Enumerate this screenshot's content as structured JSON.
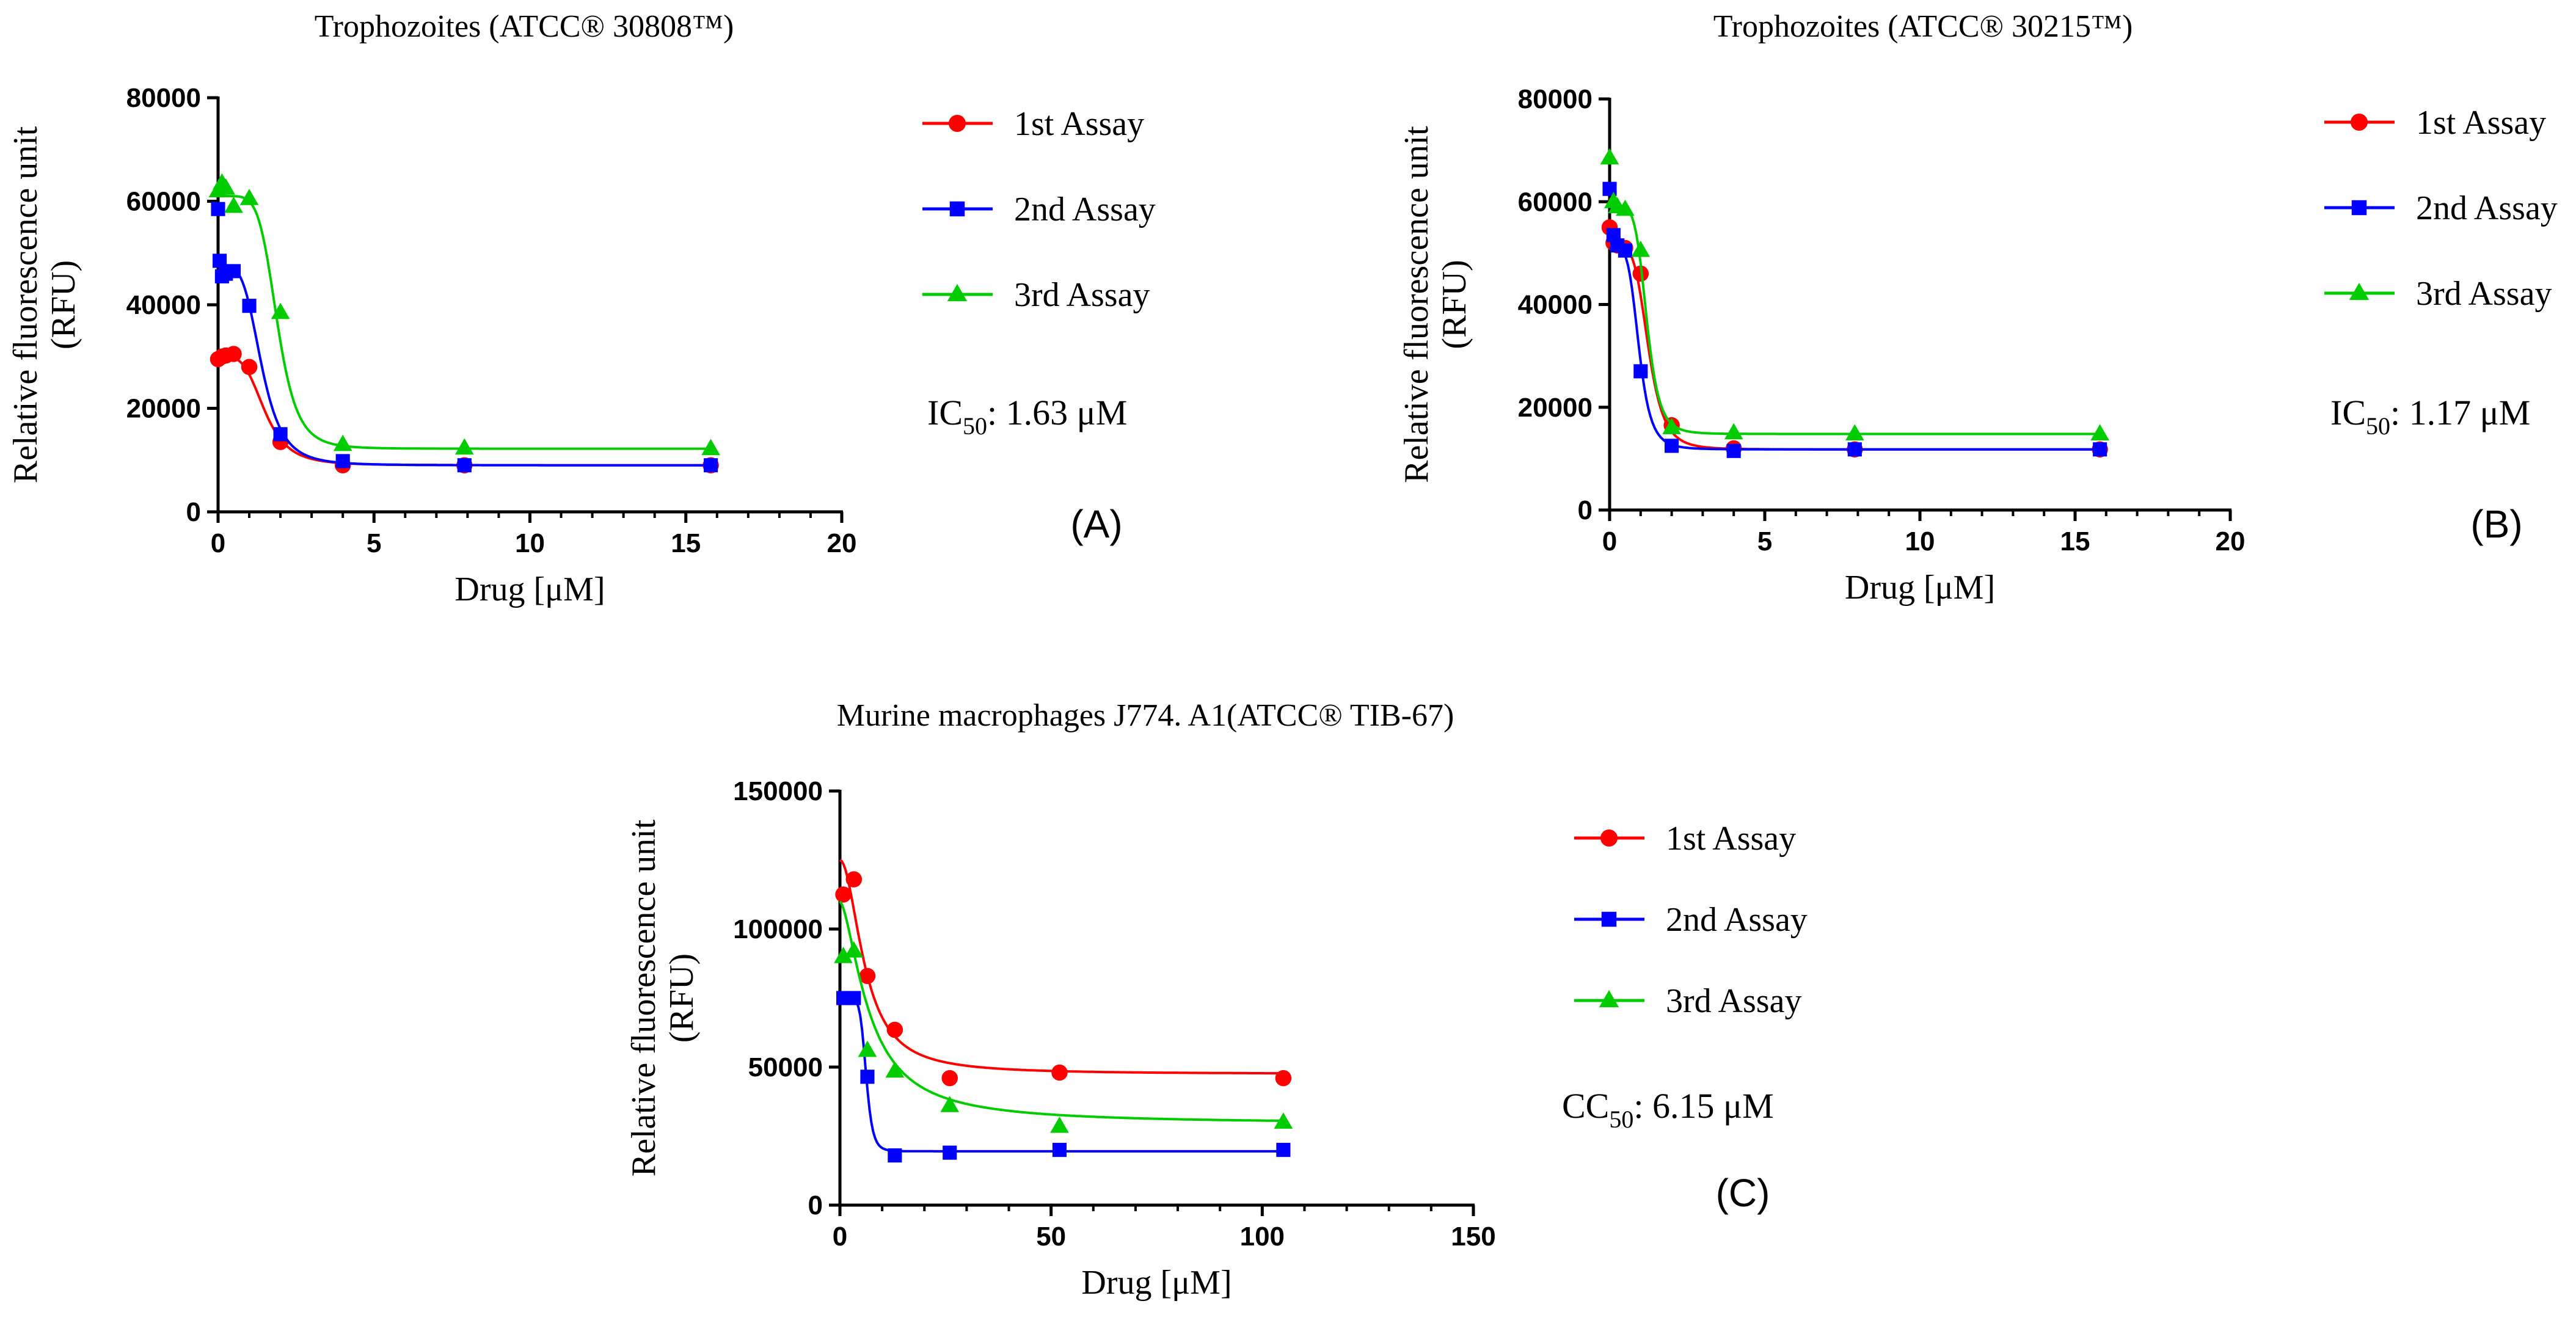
{
  "figure": {
    "panels": [
      "(A)",
      "(B)",
      "(C)"
    ]
  },
  "colors": {
    "series1": "#ff0000",
    "series2": "#0000ff",
    "series3": "#00cc00",
    "axis": "#000000"
  },
  "chart_data": [
    {
      "type": "scatter",
      "panel_label": "(A)",
      "title": "Trophozoites (ATCC® 30808™)",
      "xlabel": "Drug [μM]",
      "ylabel": "Relative fluorescence unit",
      "ylabel2": "(RFU)",
      "xlim": [
        0,
        20
      ],
      "ylim": [
        0,
        80000
      ],
      "xticks": [
        0,
        5,
        10,
        15,
        20
      ],
      "yticks": [
        0,
        20000,
        40000,
        60000,
        80000
      ],
      "xtick_labels": [
        "0",
        "5",
        "10",
        "15",
        "20"
      ],
      "ytick_labels": [
        "0",
        "20000",
        "40000",
        "60000",
        "80000"
      ],
      "stat_prefix": "IC",
      "stat_sub": "50",
      "stat_value": ": 1.63 μM",
      "legend": [
        "1st Assay",
        "2nd Assay",
        "3rd Assay"
      ],
      "series": [
        {
          "name": "1st Assay",
          "marker": "circle",
          "x": [
            0,
            0.125,
            0.25,
            0.5,
            1,
            2,
            4,
            7.9,
            15.8
          ],
          "y": [
            29500,
            30000,
            30200,
            30500,
            28000,
            13500,
            9000,
            9000,
            9000
          ],
          "fit": {
            "top": 30000,
            "bottom": 9000,
            "ic50": 1.5,
            "hill": 4
          }
        },
        {
          "name": "2nd Assay",
          "marker": "square",
          "x": [
            0,
            0.05,
            0.125,
            0.25,
            0.5,
            1,
            2,
            4,
            7.9,
            15.8
          ],
          "y": [
            58500,
            48500,
            45500,
            46000,
            46500,
            39800,
            15000,
            9800,
            9000,
            9000
          ],
          "fit": {
            "top": 47500,
            "bottom": 9000,
            "ic50": 1.4,
            "hill": 4.2
          }
        },
        {
          "name": "3rd Assay",
          "marker": "triangle",
          "x": [
            0,
            0.125,
            0.25,
            0.5,
            1,
            2,
            4,
            7.9,
            15.8
          ],
          "y": [
            62000,
            63500,
            62500,
            59000,
            60500,
            38500,
            13000,
            12300,
            12200
          ],
          "fit": {
            "top": 61000,
            "bottom": 12200,
            "ic50": 1.9,
            "hill": 6
          }
        }
      ]
    },
    {
      "type": "scatter",
      "panel_label": "(B)",
      "title": "Trophozoites (ATCC® 30215™)",
      "xlabel": "Drug [μM]",
      "ylabel": "Relative fluorescence unit",
      "ylabel2": "(RFU)",
      "xlim": [
        0,
        20
      ],
      "ylim": [
        0,
        80000
      ],
      "xticks": [
        0,
        5,
        10,
        15,
        20
      ],
      "yticks": [
        0,
        20000,
        40000,
        60000,
        80000
      ],
      "xtick_labels": [
        "0",
        "5",
        "10",
        "15",
        "20"
      ],
      "ytick_labels": [
        "0",
        "20000",
        "40000",
        "60000",
        "80000"
      ],
      "stat_prefix": "IC",
      "stat_sub": "50",
      "stat_value": ": 1.17 μM",
      "legend": [
        "1st Assay",
        "2nd Assay",
        "3rd Assay"
      ],
      "series": [
        {
          "name": "1st Assay",
          "marker": "circle",
          "x": [
            0,
            0.125,
            0.25,
            0.5,
            1,
            2,
            4,
            7.9,
            15.8
          ],
          "y": [
            55000,
            52000,
            51500,
            51000,
            46000,
            16500,
            12000,
            11800,
            11800
          ],
          "fit": {
            "top": 51500,
            "bottom": 11800,
            "ic50": 1.25,
            "hill": 5
          }
        },
        {
          "name": "2nd Assay",
          "marker": "square",
          "x": [
            0,
            0.125,
            0.25,
            0.5,
            1,
            2,
            4,
            7.9,
            15.8
          ],
          "y": [
            62500,
            53500,
            51500,
            50500,
            27000,
            12500,
            11500,
            11800,
            11800
          ],
          "fit": {
            "top": 51000,
            "bottom": 11800,
            "ic50": 0.95,
            "hill": 5
          }
        },
        {
          "name": "3rd Assay",
          "marker": "triangle",
          "x": [
            0,
            0.125,
            0.25,
            0.5,
            1,
            2,
            4,
            7.9,
            15.8
          ],
          "y": [
            68500,
            60000,
            59000,
            58500,
            50500,
            16000,
            15000,
            14800,
            14800
          ],
          "fit": {
            "top": 59000,
            "bottom": 14800,
            "ic50": 1.2,
            "hill": 6
          }
        }
      ]
    },
    {
      "type": "scatter",
      "panel_label": "(C)",
      "title": "Murine macrophages J774. A1(ATCC® TIB-67)",
      "xlabel": "Drug [μM]",
      "ylabel": "Relative fluorescence unit",
      "ylabel2": "(RFU)",
      "xlim": [
        0,
        150
      ],
      "ylim": [
        0,
        150000
      ],
      "xticks": [
        0,
        50,
        100,
        150
      ],
      "yticks": [
        0,
        50000,
        100000,
        150000
      ],
      "xtick_labels": [
        "0",
        "50",
        "100",
        "150"
      ],
      "ytick_labels": [
        "0",
        "50000",
        "100000",
        "150000"
      ],
      "stat_prefix": "CC",
      "stat_sub": "50",
      "stat_value": ": 6.15 μM",
      "legend": [
        "1st Assay",
        "2nd Assay",
        "3rd Assay"
      ],
      "series": [
        {
          "name": "1st Assay",
          "marker": "circle",
          "x": [
            0.8,
            3.3,
            6.5,
            13,
            26,
            52,
            105
          ],
          "y": [
            112500,
            118000,
            83000,
            63500,
            46000,
            48000,
            46000
          ],
          "fit": {
            "top": 125000,
            "bottom": 47500,
            "ic50": 6,
            "hill": 2
          }
        },
        {
          "name": "2nd Assay",
          "marker": "square",
          "x": [
            0.8,
            3.3,
            6.5,
            13,
            26,
            52,
            105
          ],
          "y": [
            75000,
            75000,
            46500,
            18000,
            19000,
            20000,
            20000
          ],
          "fit": {
            "top": 75000,
            "bottom": 19500,
            "ic50": 6.2,
            "hill": 8
          }
        },
        {
          "name": "3rd Assay",
          "marker": "triangle",
          "x": [
            0.8,
            3.3,
            6.5,
            13,
            26,
            52,
            105
          ],
          "y": [
            90000,
            92000,
            56000,
            48500,
            36000,
            28500,
            30000
          ],
          "fit": {
            "top": 110000,
            "bottom": 29500,
            "ic50": 7,
            "hill": 1.6
          }
        }
      ]
    }
  ]
}
